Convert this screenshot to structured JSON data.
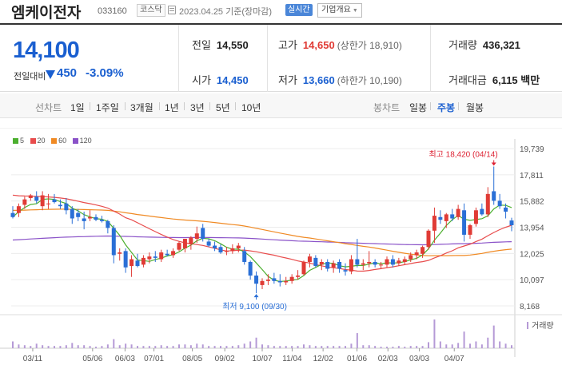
{
  "header": {
    "company_name": "엠케이전자",
    "code": "033160",
    "market": "코스닥",
    "date": "2023.04.25 기준(장마감)",
    "realtime_label": "실시간",
    "company_info_label": "기업개요"
  },
  "summary": {
    "price": "14,100",
    "change_label": "전일대비",
    "change": "450",
    "change_pct": "-3.09%",
    "prev_close_label": "전일",
    "prev_close": "14,550",
    "open_label": "시가",
    "open": "14,450",
    "high_label": "고가",
    "high": "14,650",
    "upper_limit": "(상한가 18,910)",
    "low_label": "저가",
    "low": "13,660",
    "lower_limit": "(하한가 10,190)",
    "volume_label": "거래량",
    "volume": "436,321",
    "value_label": "거래대금",
    "value": "6,115 백만"
  },
  "periods": {
    "line_label": "선차트",
    "line_items": [
      "1일",
      "1주일",
      "3개월",
      "1년",
      "3년",
      "5년",
      "10년"
    ],
    "candle_label": "봉차트",
    "candle_items": [
      "일봉",
      "주봉",
      "월봉"
    ],
    "active_candle": "주봉"
  },
  "colors": {
    "up": "#e03b35",
    "down": "#2a6fd6",
    "ma5": "#4caf2f",
    "ma20": "#e84c4c",
    "ma60": "#f08a24",
    "ma120": "#8a52c8",
    "volume": "#b59ad6"
  },
  "chart_data": {
    "type": "candlestick",
    "legend": [
      {
        "name": "5",
        "color": "#4caf2f"
      },
      {
        "name": "20",
        "color": "#e84c4c"
      },
      {
        "name": "60",
        "color": "#f08a24"
      },
      {
        "name": "120",
        "color": "#8a52c8"
      }
    ],
    "y_ticks": [
      "19,739",
      "17,811",
      "15,882",
      "13,954",
      "12,025",
      "10,097",
      "8,168"
    ],
    "ylim": [
      8168,
      19739
    ],
    "x_ticks": [
      "03/11",
      "05/06",
      "06/03",
      "07/01",
      "08/05",
      "09/02",
      "10/07",
      "11/04",
      "12/02",
      "01/06",
      "02/03",
      "03/03",
      "04/07"
    ],
    "annotations": {
      "high": {
        "text": "최고 18,420 (04/14)",
        "value": 18420
      },
      "low": {
        "text": "최저 9,100 (09/30)",
        "value": 9100
      }
    },
    "volume_label": "거래량",
    "candles": [
      {
        "o": 15000,
        "h": 15500,
        "l": 14600,
        "c": 14700
      },
      {
        "o": 15000,
        "h": 15700,
        "l": 14700,
        "c": 15500
      },
      {
        "o": 15600,
        "h": 16200,
        "l": 15300,
        "c": 16000
      },
      {
        "o": 16100,
        "h": 16400,
        "l": 15900,
        "c": 16300
      },
      {
        "o": 16200,
        "h": 16600,
        "l": 15700,
        "c": 15900
      },
      {
        "o": 15500,
        "h": 16600,
        "l": 15200,
        "c": 16300
      },
      {
        "o": 15700,
        "h": 16400,
        "l": 15300,
        "c": 15700
      },
      {
        "o": 16000,
        "h": 16400,
        "l": 15700,
        "c": 15800
      },
      {
        "o": 15600,
        "h": 16000,
        "l": 15300,
        "c": 15500
      },
      {
        "o": 15700,
        "h": 16100,
        "l": 14900,
        "c": 15200
      },
      {
        "o": 15300,
        "h": 15500,
        "l": 14200,
        "c": 14600
      },
      {
        "o": 15000,
        "h": 15300,
        "l": 14400,
        "c": 14700
      },
      {
        "o": 14600,
        "h": 15100,
        "l": 13800,
        "c": 14400
      },
      {
        "o": 14600,
        "h": 15200,
        "l": 14400,
        "c": 14700
      },
      {
        "o": 14700,
        "h": 14900,
        "l": 14400,
        "c": 14500
      },
      {
        "o": 14500,
        "h": 14800,
        "l": 14300,
        "c": 14400
      },
      {
        "o": 14400,
        "h": 14500,
        "l": 13500,
        "c": 13900
      },
      {
        "o": 13900,
        "h": 14100,
        "l": 11300,
        "c": 11900
      },
      {
        "o": 12000,
        "h": 12400,
        "l": 11500,
        "c": 12100
      },
      {
        "o": 12200,
        "h": 12400,
        "l": 10600,
        "c": 11000
      },
      {
        "o": 11100,
        "h": 11900,
        "l": 10300,
        "c": 11600
      },
      {
        "o": 11500,
        "h": 12000,
        "l": 11000,
        "c": 11100
      },
      {
        "o": 11200,
        "h": 11900,
        "l": 11000,
        "c": 11700
      },
      {
        "o": 11600,
        "h": 12100,
        "l": 11300,
        "c": 11800
      },
      {
        "o": 11800,
        "h": 12200,
        "l": 11400,
        "c": 11700
      },
      {
        "o": 11600,
        "h": 12300,
        "l": 11400,
        "c": 12100
      },
      {
        "o": 12000,
        "h": 12300,
        "l": 11800,
        "c": 11900
      },
      {
        "o": 11900,
        "h": 12400,
        "l": 11700,
        "c": 12200
      },
      {
        "o": 12300,
        "h": 12900,
        "l": 12200,
        "c": 12800
      },
      {
        "o": 12400,
        "h": 13100,
        "l": 12100,
        "c": 13100
      },
      {
        "o": 12700,
        "h": 13300,
        "l": 12300,
        "c": 13200
      },
      {
        "o": 13100,
        "h": 14000,
        "l": 12800,
        "c": 13500
      },
      {
        "o": 13900,
        "h": 14200,
        "l": 12900,
        "c": 13100
      },
      {
        "o": 12900,
        "h": 13100,
        "l": 12500,
        "c": 12600
      },
      {
        "o": 12600,
        "h": 12900,
        "l": 12200,
        "c": 12400
      },
      {
        "o": 12500,
        "h": 12700,
        "l": 12000,
        "c": 12100
      },
      {
        "o": 12200,
        "h": 12500,
        "l": 11900,
        "c": 12200
      },
      {
        "o": 12200,
        "h": 12700,
        "l": 12000,
        "c": 12400
      },
      {
        "o": 12400,
        "h": 12800,
        "l": 12100,
        "c": 12600
      },
      {
        "o": 12200,
        "h": 12500,
        "l": 11200,
        "c": 11400
      },
      {
        "o": 11400,
        "h": 11500,
        "l": 10100,
        "c": 10400
      },
      {
        "o": 10400,
        "h": 10700,
        "l": 9100,
        "c": 9800
      },
      {
        "o": 9700,
        "h": 10200,
        "l": 9400,
        "c": 10000
      },
      {
        "o": 10000,
        "h": 10500,
        "l": 9700,
        "c": 10100
      },
      {
        "o": 10200,
        "h": 10600,
        "l": 9800,
        "c": 10000
      },
      {
        "o": 10000,
        "h": 10500,
        "l": 9600,
        "c": 9900
      },
      {
        "o": 9900,
        "h": 10300,
        "l": 9700,
        "c": 10000
      },
      {
        "o": 10000,
        "h": 10500,
        "l": 9800,
        "c": 10300
      },
      {
        "o": 10300,
        "h": 10800,
        "l": 10100,
        "c": 10400
      },
      {
        "o": 10500,
        "h": 11500,
        "l": 10400,
        "c": 11400
      },
      {
        "o": 11400,
        "h": 12000,
        "l": 11000,
        "c": 11800
      },
      {
        "o": 11700,
        "h": 11900,
        "l": 11000,
        "c": 11100
      },
      {
        "o": 11200,
        "h": 11600,
        "l": 10800,
        "c": 11400
      },
      {
        "o": 11400,
        "h": 11600,
        "l": 10700,
        "c": 10900
      },
      {
        "o": 11000,
        "h": 11500,
        "l": 10600,
        "c": 11300
      },
      {
        "o": 11400,
        "h": 11600,
        "l": 10600,
        "c": 10900
      },
      {
        "o": 10800,
        "h": 11300,
        "l": 10400,
        "c": 10700
      },
      {
        "o": 10700,
        "h": 11900,
        "l": 10500,
        "c": 11600
      },
      {
        "o": 11600,
        "h": 13100,
        "l": 11000,
        "c": 11200
      },
      {
        "o": 11200,
        "h": 11600,
        "l": 10800,
        "c": 11300
      },
      {
        "o": 11300,
        "h": 12200,
        "l": 11000,
        "c": 11400
      },
      {
        "o": 11400,
        "h": 11600,
        "l": 11000,
        "c": 11200
      },
      {
        "o": 11200,
        "h": 11400,
        "l": 10900,
        "c": 11200
      },
      {
        "o": 11200,
        "h": 11800,
        "l": 11000,
        "c": 11600
      },
      {
        "o": 11600,
        "h": 11900,
        "l": 11000,
        "c": 11200
      },
      {
        "o": 11300,
        "h": 11700,
        "l": 11100,
        "c": 11500
      },
      {
        "o": 11400,
        "h": 11800,
        "l": 11200,
        "c": 11600
      },
      {
        "o": 11600,
        "h": 12100,
        "l": 11400,
        "c": 11900
      },
      {
        "o": 11900,
        "h": 12300,
        "l": 11600,
        "c": 12100
      },
      {
        "o": 12000,
        "h": 12600,
        "l": 11700,
        "c": 12500
      },
      {
        "o": 12500,
        "h": 13800,
        "l": 12300,
        "c": 13700
      },
      {
        "o": 13700,
        "h": 15400,
        "l": 12800,
        "c": 14800
      },
      {
        "o": 14700,
        "h": 15200,
        "l": 14200,
        "c": 14500
      },
      {
        "o": 14400,
        "h": 15000,
        "l": 13900,
        "c": 14900
      },
      {
        "o": 14900,
        "h": 15300,
        "l": 14400,
        "c": 14600
      },
      {
        "o": 14700,
        "h": 15600,
        "l": 14500,
        "c": 15300
      },
      {
        "o": 15200,
        "h": 15700,
        "l": 12900,
        "c": 13400
      },
      {
        "o": 13400,
        "h": 14200,
        "l": 13100,
        "c": 14100
      },
      {
        "o": 14200,
        "h": 15400,
        "l": 14000,
        "c": 15200
      },
      {
        "o": 15300,
        "h": 15700,
        "l": 14800,
        "c": 14900
      },
      {
        "o": 14900,
        "h": 16900,
        "l": 14700,
        "c": 16400
      },
      {
        "o": 16600,
        "h": 18420,
        "l": 15600,
        "c": 15900
      },
      {
        "o": 15900,
        "h": 16400,
        "l": 15300,
        "c": 15500
      },
      {
        "o": 15400,
        "h": 15700,
        "l": 14600,
        "c": 15100
      },
      {
        "o": 14450,
        "h": 14650,
        "l": 13660,
        "c": 14100
      }
    ],
    "volumes": [
      9,
      5,
      4,
      3,
      6,
      4,
      3,
      3,
      3,
      4,
      7,
      4,
      4,
      3,
      2,
      3,
      5,
      12,
      4,
      6,
      5,
      3,
      3,
      3,
      3,
      4,
      3,
      3,
      5,
      5,
      4,
      6,
      5,
      3,
      3,
      3,
      3,
      3,
      4,
      6,
      9,
      14,
      5,
      4,
      3,
      3,
      3,
      3,
      3,
      5,
      4,
      3,
      3,
      3,
      3,
      3,
      3,
      6,
      20,
      4,
      4,
      3,
      2,
      2,
      2,
      3,
      2,
      3,
      3,
      3,
      8,
      38,
      9,
      5,
      5,
      7,
      22,
      6,
      9,
      5,
      14,
      30,
      9,
      6,
      4
    ]
  }
}
